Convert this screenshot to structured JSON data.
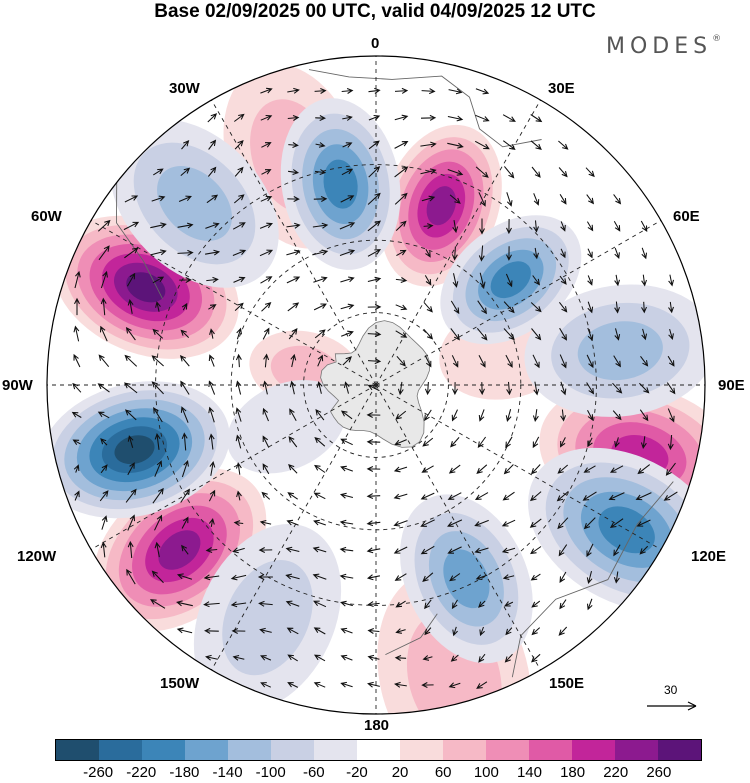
{
  "title": "Base 02/09/2025 00 UTC, valid 04/09/2025 12 UTC",
  "brand": {
    "name": "MODES",
    "mark": "®"
  },
  "longitude_labels": {
    "top": "0",
    "bottom": "180",
    "left": "90W",
    "right": "90E",
    "w30": "30W",
    "e30": "30E",
    "w60": "60W",
    "e60": "60E",
    "w120": "120W",
    "e120": "120E",
    "w150": "150W",
    "e150": "150E"
  },
  "reference_vector": {
    "label": "30"
  },
  "colorbar": {
    "colors": [
      "#1f4e6e",
      "#2a6c9c",
      "#3c85b8",
      "#6ea3cf",
      "#a3bedd",
      "#c9d0e4",
      "#e4e4ee",
      "#ffffff",
      "#f9dcdc",
      "#f6b9c6",
      "#ef8eb6",
      "#e05aa6",
      "#c2259a",
      "#8c1a8f",
      "#5c1479"
    ],
    "ticks": [
      "-260",
      "-220",
      "-180",
      "-140",
      "-100",
      "-60",
      "-20",
      "20",
      "60",
      "100",
      "140",
      "180",
      "220",
      "260"
    ]
  },
  "anomalies": [
    {
      "sign": "positive",
      "lon": 20,
      "colat": 0.58,
      "value": 230
    },
    {
      "sign": "positive",
      "lon": -67,
      "colat": 0.76,
      "value": 260
    },
    {
      "sign": "positive",
      "lon": -130,
      "colat": 0.78,
      "value": 250
    },
    {
      "sign": "positive",
      "lon": 105,
      "colat": 0.83,
      "value": 200
    },
    {
      "sign": "positive",
      "lon": -20,
      "colat": 0.74,
      "value": 60
    },
    {
      "sign": "positive",
      "lon": 165,
      "colat": 0.92,
      "value": 80
    },
    {
      "sign": "positive",
      "lon": 75,
      "colat": 0.42,
      "value": 50
    },
    {
      "sign": "positive",
      "lon": -78,
      "colat": 0.22,
      "value": 60
    },
    {
      "sign": "negative",
      "lon": -105,
      "colat": 0.76,
      "value": -260
    },
    {
      "sign": "negative",
      "lon": -10,
      "colat": 0.62,
      "value": -190
    },
    {
      "sign": "negative",
      "lon": 52,
      "colat": 0.52,
      "value": -180
    },
    {
      "sign": "negative",
      "lon": 155,
      "colat": 0.65,
      "value": -160
    },
    {
      "sign": "negative",
      "lon": 120,
      "colat": 0.88,
      "value": -190
    },
    {
      "sign": "negative",
      "lon": -45,
      "colat": 0.78,
      "value": -100
    },
    {
      "sign": "negative",
      "lon": 82,
      "colat": 0.75,
      "value": -100
    },
    {
      "sign": "negative",
      "lon": -155,
      "colat": 0.78,
      "value": -90
    },
    {
      "sign": "negative",
      "lon": -115,
      "colat": 0.3,
      "value": -30
    }
  ]
}
